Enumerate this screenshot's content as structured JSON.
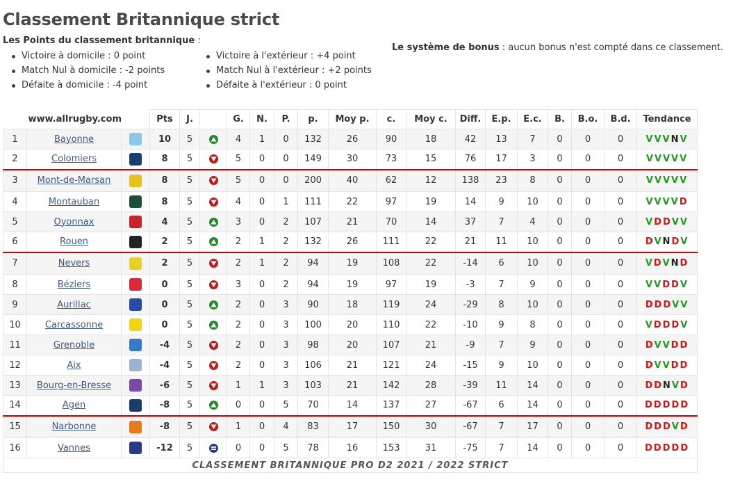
{
  "title": "Classement Britannique strict",
  "points": {
    "heading": "Les Points du classement britannique",
    "heading_suffix": " :",
    "home": [
      "Victoire à domicile : 0 point",
      "Match Nul à domicile : -2 points",
      "Défaite à domicile : -4 point"
    ],
    "away": [
      "Victoire à l'extérieur : +4 point",
      "Match Nul à l'extérieur : +2 points",
      "Défaite à l'extérieur : 0 point"
    ]
  },
  "bonus": {
    "label": "Le système de bonus",
    "text": " : aucun bonus n'est compté dans ce classement."
  },
  "table": {
    "site": "www.allrugby.com",
    "headers": [
      "Pts",
      "J.",
      "",
      "G.",
      "N.",
      "P.",
      "p.",
      "Moy p.",
      "c.",
      "Moy c.",
      "Diff.",
      "E.p.",
      "E.c.",
      "B.",
      "B.o.",
      "B.d.",
      "Tendance"
    ],
    "rows": [
      {
        "rank": "1",
        "team": "Bayonne",
        "logo": "#8ec6e8",
        "pts": "10",
        "j": "5",
        "arrow": "up",
        "g": "4",
        "n": "1",
        "p": "0",
        "pf": "132",
        "moyp": "26",
        "c": "90",
        "moyc": "18",
        "diff": "42",
        "ep": "13",
        "ec": "7",
        "b": "0",
        "bo": "0",
        "bd": "0",
        "trend": [
          "V",
          "V",
          "V",
          "N",
          "V"
        ]
      },
      {
        "rank": "2",
        "team": "Colomiers",
        "logo": "#1c3e73",
        "pts": "8",
        "j": "5",
        "arrow": "down",
        "g": "5",
        "n": "0",
        "p": "0",
        "pf": "149",
        "moyp": "30",
        "c": "73",
        "moyc": "15",
        "diff": "76",
        "ep": "17",
        "ec": "3",
        "b": "0",
        "bo": "0",
        "bd": "0",
        "trend": [
          "V",
          "V",
          "V",
          "V",
          "V"
        ]
      },
      {
        "rank": "3",
        "team": "Mont-de-Marsan",
        "logo": "#e8c21a",
        "pts": "8",
        "j": "5",
        "arrow": "down",
        "g": "5",
        "n": "0",
        "p": "0",
        "pf": "200",
        "moyp": "40",
        "c": "62",
        "moyc": "12",
        "diff": "138",
        "ep": "23",
        "ec": "8",
        "b": "0",
        "bo": "0",
        "bd": "0",
        "trend": [
          "V",
          "V",
          "V",
          "V",
          "V"
        ]
      },
      {
        "rank": "4",
        "team": "Montauban",
        "logo": "#1f4f3a",
        "pts": "8",
        "j": "5",
        "arrow": "down",
        "g": "4",
        "n": "0",
        "p": "1",
        "pf": "111",
        "moyp": "22",
        "c": "97",
        "moyc": "19",
        "diff": "14",
        "ep": "9",
        "ec": "10",
        "b": "0",
        "bo": "0",
        "bd": "0",
        "trend": [
          "V",
          "V",
          "V",
          "V",
          "D"
        ]
      },
      {
        "rank": "5",
        "team": "Oyonnax",
        "logo": "#c8222a",
        "pts": "4",
        "j": "5",
        "arrow": "up",
        "g": "3",
        "n": "0",
        "p": "2",
        "pf": "107",
        "moyp": "21",
        "c": "70",
        "moyc": "14",
        "diff": "37",
        "ep": "7",
        "ec": "4",
        "b": "0",
        "bo": "0",
        "bd": "0",
        "trend": [
          "V",
          "D",
          "D",
          "V",
          "V"
        ]
      },
      {
        "rank": "6",
        "team": "Rouen",
        "logo": "#222222",
        "pts": "2",
        "j": "5",
        "arrow": "up",
        "g": "2",
        "n": "1",
        "p": "2",
        "pf": "132",
        "moyp": "26",
        "c": "111",
        "moyc": "22",
        "diff": "21",
        "ep": "11",
        "ec": "10",
        "b": "0",
        "bo": "0",
        "bd": "0",
        "trend": [
          "D",
          "V",
          "N",
          "D",
          "V"
        ]
      },
      {
        "rank": "7",
        "team": "Nevers",
        "logo": "#e8d02a",
        "pts": "2",
        "j": "5",
        "arrow": "down",
        "g": "2",
        "n": "1",
        "p": "2",
        "pf": "94",
        "moyp": "19",
        "c": "108",
        "moyc": "22",
        "diff": "-14",
        "ep": "6",
        "ec": "10",
        "b": "0",
        "bo": "0",
        "bd": "0",
        "trend": [
          "V",
          "D",
          "V",
          "N",
          "D"
        ]
      },
      {
        "rank": "8",
        "team": "Béziers",
        "logo": "#d82a3a",
        "pts": "0",
        "j": "5",
        "arrow": "down",
        "g": "3",
        "n": "0",
        "p": "2",
        "pf": "94",
        "moyp": "19",
        "c": "97",
        "moyc": "19",
        "diff": "-3",
        "ep": "7",
        "ec": "9",
        "b": "0",
        "bo": "0",
        "bd": "0",
        "trend": [
          "V",
          "V",
          "D",
          "D",
          "V"
        ]
      },
      {
        "rank": "9",
        "team": "Aurillac",
        "logo": "#2a4aa8",
        "pts": "0",
        "j": "5",
        "arrow": "up",
        "g": "2",
        "n": "0",
        "p": "3",
        "pf": "90",
        "moyp": "18",
        "c": "119",
        "moyc": "24",
        "diff": "-29",
        "ep": "8",
        "ec": "10",
        "b": "0",
        "bo": "0",
        "bd": "0",
        "trend": [
          "D",
          "D",
          "D",
          "V",
          "V"
        ]
      },
      {
        "rank": "10",
        "team": "Carcassonne",
        "logo": "#f0d418",
        "pts": "0",
        "j": "5",
        "arrow": "up",
        "g": "2",
        "n": "0",
        "p": "3",
        "pf": "100",
        "moyp": "20",
        "c": "110",
        "moyc": "22",
        "diff": "-10",
        "ep": "9",
        "ec": "8",
        "b": "0",
        "bo": "0",
        "bd": "0",
        "trend": [
          "V",
          "D",
          "D",
          "D",
          "V"
        ]
      },
      {
        "rank": "11",
        "team": "Grenoble",
        "logo": "#3a78c8",
        "pts": "-4",
        "j": "5",
        "arrow": "down",
        "g": "2",
        "n": "0",
        "p": "3",
        "pf": "98",
        "moyp": "20",
        "c": "107",
        "moyc": "21",
        "diff": "-9",
        "ep": "7",
        "ec": "9",
        "b": "0",
        "bo": "0",
        "bd": "0",
        "trend": [
          "D",
          "V",
          "V",
          "D",
          "D"
        ]
      },
      {
        "rank": "12",
        "team": "Aix",
        "logo": "#9ab4d0",
        "pts": "-4",
        "j": "5",
        "arrow": "down",
        "g": "2",
        "n": "0",
        "p": "3",
        "pf": "106",
        "moyp": "21",
        "c": "121",
        "moyc": "24",
        "diff": "-15",
        "ep": "9",
        "ec": "10",
        "b": "0",
        "bo": "0",
        "bd": "0",
        "trend": [
          "D",
          "V",
          "V",
          "D",
          "D"
        ]
      },
      {
        "rank": "13",
        "team": "Bourg-en-Bresse",
        "logo": "#7a4aa8",
        "pts": "-6",
        "j": "5",
        "arrow": "down",
        "g": "1",
        "n": "1",
        "p": "3",
        "pf": "103",
        "moyp": "21",
        "c": "142",
        "moyc": "28",
        "diff": "-39",
        "ep": "11",
        "ec": "14",
        "b": "0",
        "bo": "0",
        "bd": "0",
        "trend": [
          "D",
          "D",
          "N",
          "V",
          "D"
        ]
      },
      {
        "rank": "14",
        "team": "Agen",
        "logo": "#1c3a6a",
        "pts": "-8",
        "j": "5",
        "arrow": "up",
        "g": "0",
        "n": "0",
        "p": "5",
        "pf": "70",
        "moyp": "14",
        "c": "137",
        "moyc": "27",
        "diff": "-67",
        "ep": "6",
        "ec": "14",
        "b": "0",
        "bo": "0",
        "bd": "0",
        "trend": [
          "D",
          "D",
          "D",
          "D",
          "D"
        ]
      },
      {
        "rank": "15",
        "team": "Narbonne",
        "logo": "#e87a1a",
        "pts": "-8",
        "j": "5",
        "arrow": "down",
        "g": "1",
        "n": "0",
        "p": "4",
        "pf": "83",
        "moyp": "17",
        "c": "150",
        "moyc": "30",
        "diff": "-67",
        "ep": "7",
        "ec": "17",
        "b": "0",
        "bo": "0",
        "bd": "0",
        "trend": [
          "D",
          "D",
          "D",
          "V",
          "D"
        ]
      },
      {
        "rank": "16",
        "team": "Vannes",
        "logo": "#2a3a8a",
        "pts": "-12",
        "j": "5",
        "arrow": "equal",
        "g": "0",
        "n": "0",
        "p": "5",
        "pf": "78",
        "moyp": "16",
        "c": "153",
        "moyc": "31",
        "diff": "-75",
        "ep": "7",
        "ec": "14",
        "b": "0",
        "bo": "0",
        "bd": "0",
        "trend": [
          "D",
          "D",
          "D",
          "D",
          "D"
        ]
      }
    ],
    "separators_before_ranks": [
      "3",
      "7",
      "15"
    ],
    "footer": "CLASSEMENT BRITANNIQUE PRO D2 2021 / 2022 STRICT"
  }
}
